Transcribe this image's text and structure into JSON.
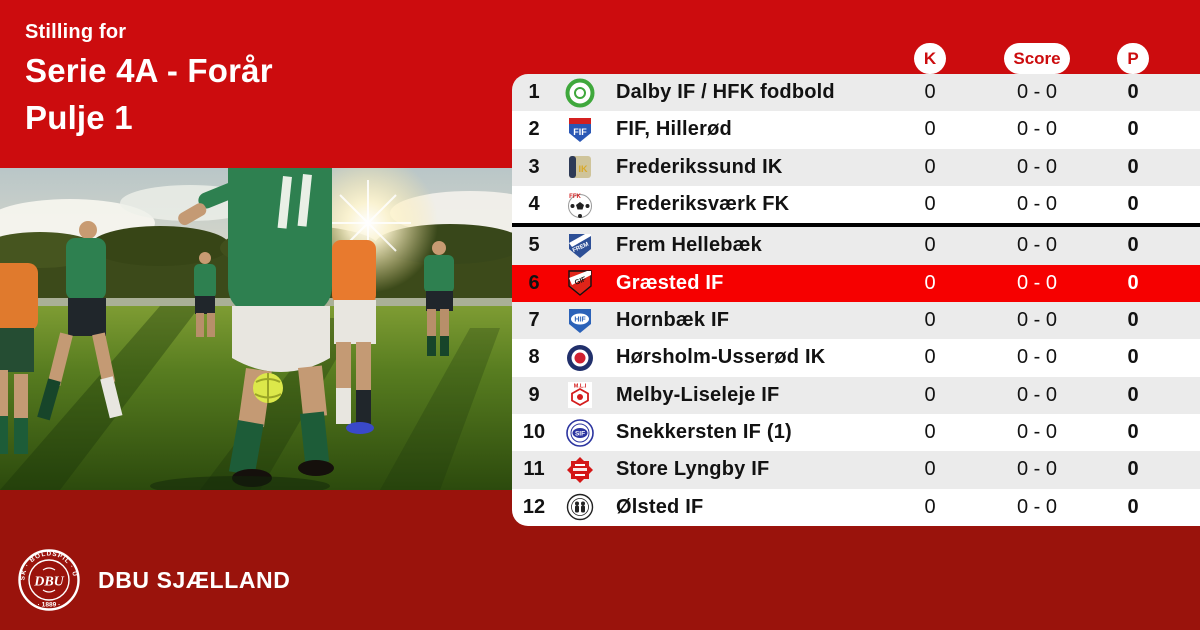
{
  "header": {
    "eyebrow": "Stilling for",
    "title_line1": "Serie 4A - Forår",
    "title_line2": "Pulje 1"
  },
  "table": {
    "columns": {
      "k": "K",
      "score": "Score",
      "p": "P"
    },
    "divider_after_row": 4,
    "rows": [
      {
        "pos": "1",
        "club": "Dalby IF / HFK fodbold",
        "k": "0",
        "score": "0 - 0",
        "p": "0",
        "highlight": false,
        "logo": {
          "kind": "ring",
          "colors": [
            "#3fa83c",
            "#ffffff"
          ]
        }
      },
      {
        "pos": "2",
        "club": "FIF, Hillerød",
        "k": "0",
        "score": "0 - 0",
        "p": "0",
        "highlight": false,
        "logo": {
          "kind": "shield-band",
          "colors": [
            "#2a57b5",
            "#d42020",
            "#ffffff"
          ],
          "text": "FIF"
        }
      },
      {
        "pos": "3",
        "club": "Frederikssund IK",
        "k": "0",
        "score": "0 - 0",
        "p": "0",
        "highlight": false,
        "logo": {
          "kind": "square-crest",
          "colors": [
            "#cfc49a",
            "#2e3a56",
            "#d9a826"
          ],
          "text": "FIK"
        }
      },
      {
        "pos": "4",
        "club": "Frederiksværk FK",
        "k": "0",
        "score": "0 - 0",
        "p": "0",
        "highlight": false,
        "logo": {
          "kind": "ball",
          "colors": [
            "#ffffff",
            "#222222",
            "#d42020"
          ],
          "text": "FFK"
        }
      },
      {
        "pos": "5",
        "club": "Frem Hellebæk",
        "k": "0",
        "score": "0 - 0",
        "p": "0",
        "highlight": false,
        "logo": {
          "kind": "shield-stripes",
          "colors": [
            "#2d4f96",
            "#ffffff"
          ],
          "text": "FREM"
        }
      },
      {
        "pos": "6",
        "club": "Græsted IF",
        "k": "0",
        "score": "0 - 0",
        "p": "0",
        "highlight": true,
        "logo": {
          "kind": "shield-diag",
          "colors": [
            "#e02419",
            "#ffffff",
            "#111111"
          ],
          "text": "GIF"
        }
      },
      {
        "pos": "7",
        "club": "Hornbæk IF",
        "k": "0",
        "score": "0 - 0",
        "p": "0",
        "highlight": false,
        "logo": {
          "kind": "shield-split",
          "colors": [
            "#2b62b8",
            "#ffffff"
          ],
          "text": "HIF"
        }
      },
      {
        "pos": "8",
        "club": "Hørsholm-Usserød IK",
        "k": "0",
        "score": "0 - 0",
        "p": "0",
        "highlight": false,
        "logo": {
          "kind": "rings",
          "colors": [
            "#21306b",
            "#ffffff",
            "#cf2030"
          ]
        }
      },
      {
        "pos": "9",
        "club": "Melby-Liseleje IF",
        "k": "0",
        "score": "0 - 0",
        "p": "0",
        "highlight": false,
        "logo": {
          "kind": "hex",
          "colors": [
            "#ffffff",
            "#d41c1c"
          ],
          "text": "M.L.I"
        }
      },
      {
        "pos": "10",
        "club": "Snekkersten IF (1)",
        "k": "0",
        "score": "0 - 0",
        "p": "0",
        "highlight": false,
        "logo": {
          "kind": "circle-text",
          "colors": [
            "#ffffff",
            "#2c35a0"
          ],
          "text": "SIF"
        }
      },
      {
        "pos": "11",
        "club": "Store Lyngby IF",
        "k": "0",
        "score": "0 - 0",
        "p": "0",
        "highlight": false,
        "logo": {
          "kind": "badge",
          "colors": [
            "#d41717",
            "#ffffff"
          ],
          "text": "LYNGBY"
        }
      },
      {
        "pos": "12",
        "club": "Ølsted IF",
        "k": "0",
        "score": "0 - 0",
        "p": "0",
        "highlight": false,
        "logo": {
          "kind": "circle-figures",
          "colors": [
            "#ffffff",
            "#222222"
          ]
        }
      }
    ]
  },
  "footer": {
    "brand": "DBU SJÆLLAND",
    "crest": {
      "ring_top": "DANSK · BOLDSPIL · UNION",
      "ring_bottom": "· 1889 ·",
      "monogram": "DBU"
    }
  },
  "colors": {
    "brand_red": "#cc0c0e",
    "dark_red": "#9a130c",
    "highlight_red": "#f60000",
    "row_alt": "#ebebeb",
    "row_white": "#ffffff",
    "pill_bg": "#ffffff",
    "text_dark": "#121212"
  }
}
